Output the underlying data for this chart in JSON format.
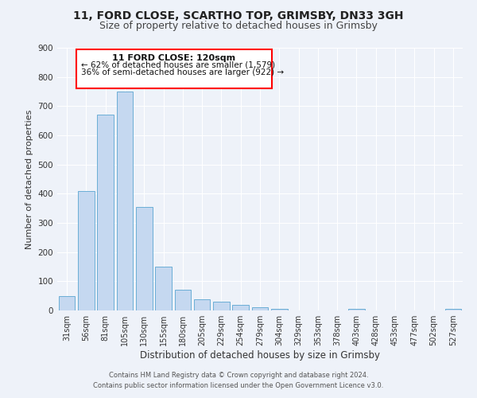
{
  "title": "11, FORD CLOSE, SCARTHO TOP, GRIMSBY, DN33 3GH",
  "subtitle": "Size of property relative to detached houses in Grimsby",
  "xlabel": "Distribution of detached houses by size in Grimsby",
  "ylabel": "Number of detached properties",
  "categories": [
    "31sqm",
    "56sqm",
    "81sqm",
    "105sqm",
    "130sqm",
    "155sqm",
    "180sqm",
    "205sqm",
    "229sqm",
    "254sqm",
    "279sqm",
    "304sqm",
    "329sqm",
    "353sqm",
    "378sqm",
    "403sqm",
    "428sqm",
    "453sqm",
    "477sqm",
    "502sqm",
    "527sqm"
  ],
  "values": [
    50,
    410,
    670,
    750,
    355,
    150,
    70,
    37,
    30,
    18,
    10,
    5,
    0,
    0,
    0,
    5,
    0,
    0,
    0,
    0,
    5
  ],
  "bar_color": "#c5d8f0",
  "bar_edge_color": "#6baed6",
  "ylim": [
    0,
    900
  ],
  "yticks": [
    0,
    100,
    200,
    300,
    400,
    500,
    600,
    700,
    800,
    900
  ],
  "annotation_title": "11 FORD CLOSE: 120sqm",
  "annotation_line1": "← 62% of detached houses are smaller (1,579)",
  "annotation_line2": "36% of semi-detached houses are larger (922) →",
  "footer1": "Contains HM Land Registry data © Crown copyright and database right 2024.",
  "footer2": "Contains public sector information licensed under the Open Government Licence v3.0.",
  "bg_color": "#eef2f9",
  "grid_color": "#ffffff",
  "title_fontsize": 10,
  "subtitle_fontsize": 9,
  "ylabel_fontsize": 8,
  "xlabel_fontsize": 8.5,
  "tick_fontsize": 7,
  "footer_fontsize": 6
}
